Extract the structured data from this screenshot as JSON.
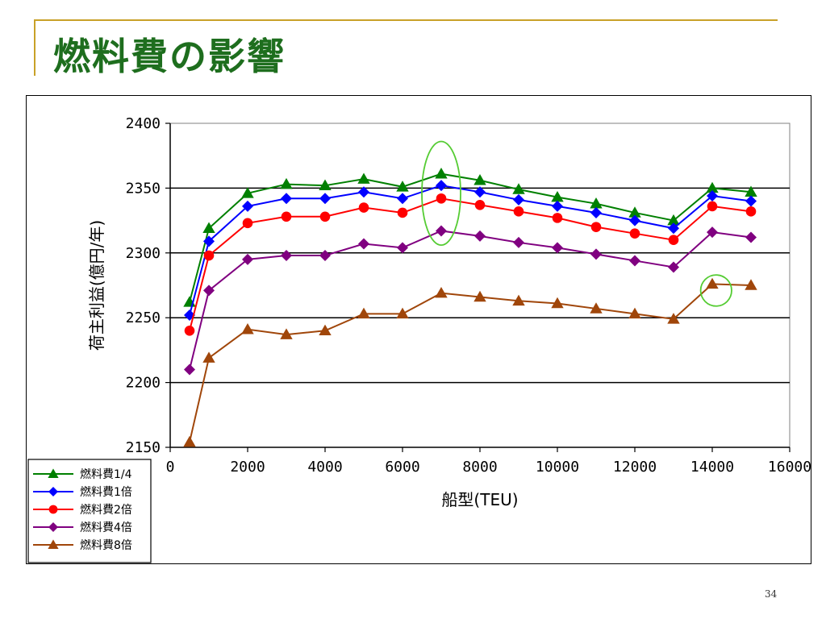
{
  "slide": {
    "title": "燃料費の影響",
    "page_number": "34",
    "accent_color": "#C8A128",
    "title_color": "#1E6E1E"
  },
  "chart_data": {
    "type": "line",
    "title": "",
    "xlabel": "船型(TEU)",
    "ylabel": "荷主利益(億円/年)",
    "xlim": [
      0,
      16000
    ],
    "ylim": [
      2150,
      2400
    ],
    "xticks": [
      0,
      2000,
      4000,
      6000,
      8000,
      10000,
      12000,
      14000,
      16000
    ],
    "yticks": [
      2150,
      2200,
      2250,
      2300,
      2350,
      2400
    ],
    "grid": "horizontal",
    "legend_position": "bottom-left",
    "x": [
      500,
      1000,
      2000,
      3000,
      4000,
      5000,
      6000,
      7000,
      8000,
      9000,
      10000,
      11000,
      12000,
      13000,
      14000,
      15000
    ],
    "series": [
      {
        "name": "燃料費1/4",
        "color": "#008000",
        "marker": "triangle",
        "values": [
          2262,
          2319,
          2346,
          2353,
          2352,
          2357,
          2351,
          2361,
          2356,
          2349,
          2343,
          2338,
          2331,
          2325,
          2350,
          2347
        ]
      },
      {
        "name": "燃料費1倍",
        "color": "#0000FF",
        "marker": "diamond",
        "values": [
          2252,
          2309,
          2336,
          2342,
          2342,
          2347,
          2342,
          2352,
          2347,
          2341,
          2336,
          2331,
          2325,
          2319,
          2344,
          2340
        ]
      },
      {
        "name": "燃料費2倍",
        "color": "#FF0000",
        "marker": "circle",
        "values": [
          2240,
          2298,
          2323,
          2328,
          2328,
          2335,
          2331,
          2342,
          2337,
          2332,
          2327,
          2320,
          2315,
          2310,
          2336,
          2332
        ]
      },
      {
        "name": "燃料費4倍",
        "color": "#800080",
        "marker": "diamond",
        "values": [
          2210,
          2271,
          2295,
          2298,
          2298,
          2307,
          2304,
          2317,
          2313,
          2308,
          2304,
          2299,
          2294,
          2289,
          2316,
          2312
        ]
      },
      {
        "name": "燃料費8倍",
        "color": "#A0460A",
        "marker": "triangle",
        "values": [
          2154,
          2219,
          2241,
          2237,
          2240,
          2253,
          2253,
          2269,
          2266,
          2263,
          2261,
          2257,
          2253,
          2249,
          2276,
          2275
        ]
      }
    ],
    "annotations": [
      {
        "type": "ellipse",
        "color": "#55CC33",
        "x": 7000,
        "y": 2346,
        "rx": 500,
        "ry": 40
      },
      {
        "type": "ellipse",
        "color": "#55CC33",
        "x": 14100,
        "y": 2271,
        "rx": 400,
        "ry": 12
      }
    ]
  }
}
